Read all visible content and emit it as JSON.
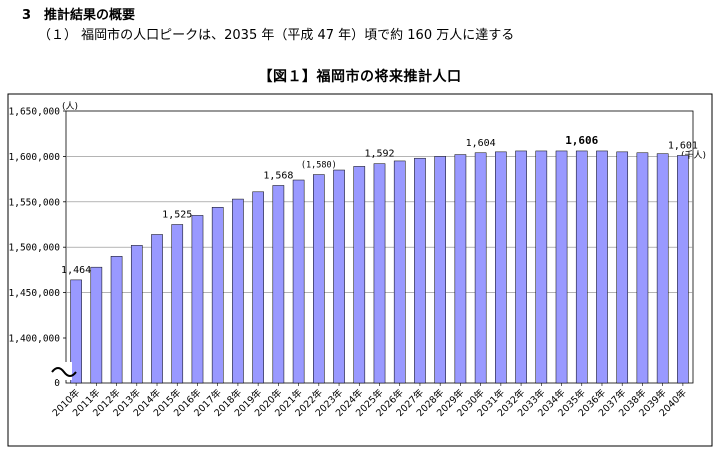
{
  "page": {
    "heading": "3　推計結果の概要",
    "subheading": "（１） 福岡市の人口ピークは、2035 年（平成 47 年）頃で約 160 万人に達する"
  },
  "chart_data": {
    "type": "bar",
    "title": "【図１】福岡市の将来推計人口",
    "ylabel": "(人)",
    "unit_right": "(千人)",
    "bar_color": "#9999ff",
    "ylim": [
      1350000,
      1650000
    ],
    "ytick_values": [
      1400000,
      1450000,
      1500000,
      1550000,
      1600000,
      1650000
    ],
    "ytick_labels": [
      "1,400,000",
      "1,450,000",
      "1,500,000",
      "1,550,000",
      "1,600,000",
      "1,650,000"
    ],
    "y_zero_label": "0",
    "axis_break": true,
    "grid": true,
    "categories": [
      "2010年",
      "2011年",
      "2012年",
      "2013年",
      "2014年",
      "2015年",
      "2016年",
      "2017年",
      "2018年",
      "2019年",
      "2020年",
      "2021年",
      "2022年",
      "2023年",
      "2024年",
      "2025年",
      "2026年",
      "2027年",
      "2028年",
      "2029年",
      "2030年",
      "2031年",
      "2032年",
      "2033年",
      "2034年",
      "2035年",
      "2036年",
      "2037年",
      "2038年",
      "2039年",
      "2040年"
    ],
    "values": [
      1464000,
      1478000,
      1490000,
      1502000,
      1514000,
      1525000,
      1535000,
      1544000,
      1553000,
      1561000,
      1568000,
      1574000,
      1580000,
      1585000,
      1589000,
      1592000,
      1595000,
      1598000,
      1600000,
      1602000,
      1604000,
      1605000,
      1606000,
      1606000,
      1606000,
      1606000,
      1606000,
      1605000,
      1604000,
      1603000,
      1601000
    ],
    "data_labels": [
      {
        "index": 0,
        "text": "1,464",
        "style": "normal"
      },
      {
        "index": 5,
        "text": "1,525",
        "style": "normal"
      },
      {
        "index": 10,
        "text": "1,568",
        "style": "normal"
      },
      {
        "index": 12,
        "text": "(1,580)",
        "style": "small"
      },
      {
        "index": 15,
        "text": "1,592",
        "style": "normal"
      },
      {
        "index": 20,
        "text": "1,604",
        "style": "normal"
      },
      {
        "index": 25,
        "text": "1,606",
        "style": "bold"
      },
      {
        "index": 30,
        "text": "1,601",
        "style": "normal"
      }
    ]
  }
}
